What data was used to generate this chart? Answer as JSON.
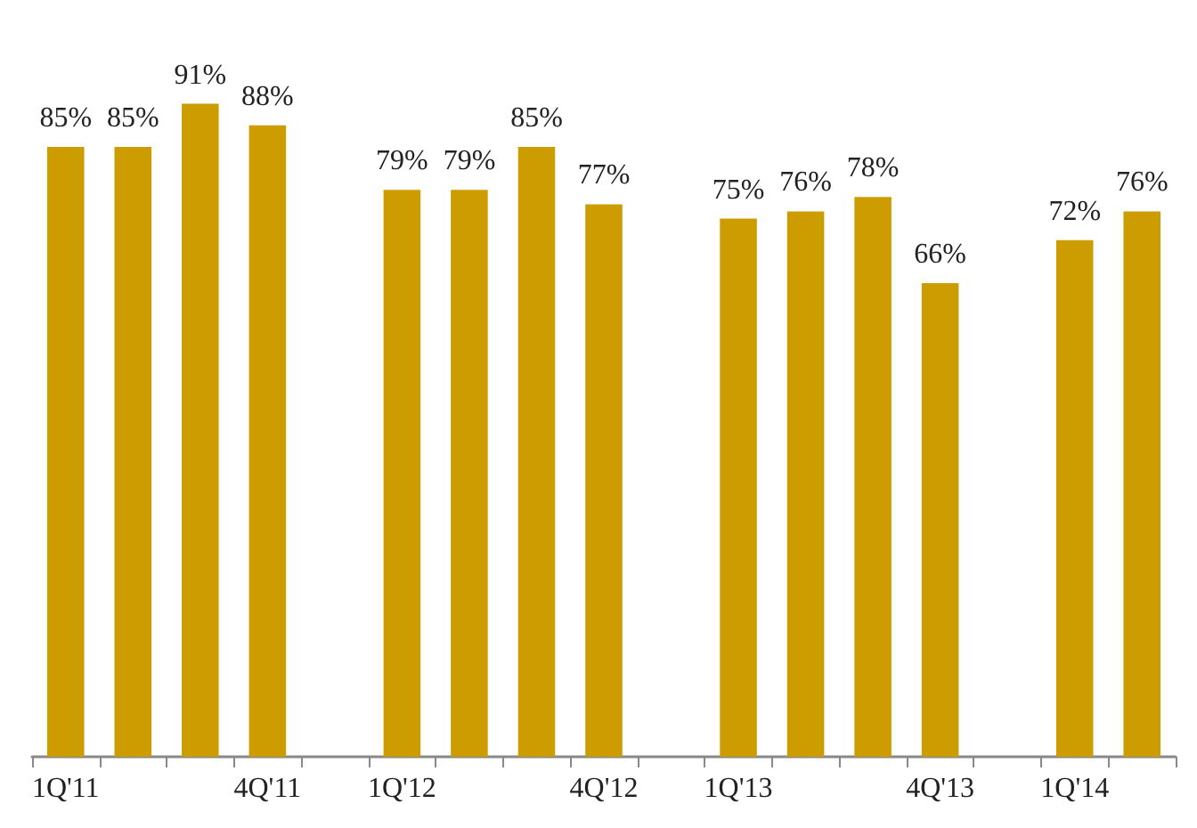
{
  "chart_data": {
    "type": "bar",
    "categories": [
      "1Q'11",
      null,
      null,
      "4Q'11",
      null,
      "1Q'12",
      null,
      null,
      "4Q'12",
      null,
      "1Q'13",
      null,
      null,
      "4Q'13",
      null,
      "1Q'14",
      null
    ],
    "values": [
      85,
      85,
      91,
      88,
      null,
      79,
      79,
      85,
      77,
      null,
      75,
      76,
      78,
      66,
      null,
      72,
      76
    ],
    "value_labels": [
      "85%",
      "85%",
      "91%",
      "88%",
      null,
      "79%",
      "79%",
      "85%",
      "77%",
      null,
      "75%",
      "76%",
      "78%",
      "66%",
      null,
      "72%",
      "76%"
    ],
    "color": "#cc9c00",
    "grid": false
  }
}
